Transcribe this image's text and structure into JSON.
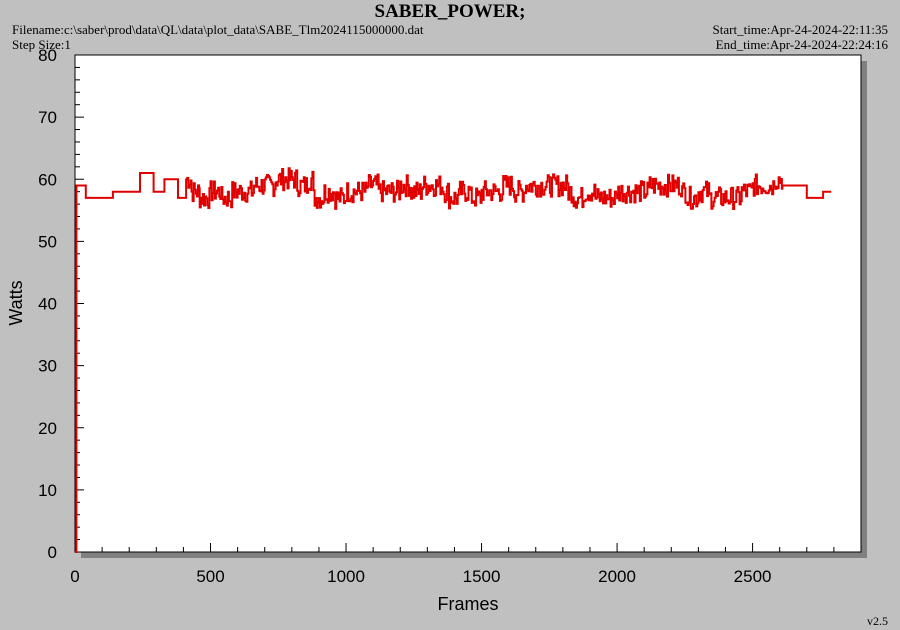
{
  "header": {
    "title": "SABER_POWER;",
    "filename": "Filename:c:\\saber\\prod\\data\\QL\\data\\plot_data\\SABE_Tlm2024115000000.dat",
    "step_size": "Step Size:1",
    "start_time": "Start_time:Apr-24-2024-22:11:35",
    "end_time": "End_time:Apr-24-2024-22:24:16"
  },
  "footer": {
    "version": "v2.5"
  },
  "colors": {
    "line": "#e00000",
    "plot_bg": "#ffffff",
    "page_bg": "#c0c0c0",
    "shadow": "#808080"
  },
  "chart_data": {
    "type": "line",
    "title": "SABER_POWER;",
    "xlabel": "Frames",
    "ylabel": "Watts",
    "xlim": [
      0,
      2900
    ],
    "ylim": [
      0,
      80
    ],
    "xticks": [
      0,
      500,
      1000,
      1500,
      2000,
      2500
    ],
    "yticks": [
      0,
      10,
      20,
      30,
      40,
      50,
      60,
      70,
      80
    ],
    "grid": false,
    "legend": "none",
    "series": [
      {
        "x": [
          0,
          5,
          40,
          140,
          240,
          290,
          330,
          380,
          410,
          430,
          460,
          500,
          540,
          580,
          620,
          660,
          700,
          740,
          780,
          820,
          860,
          880,
          920,
          960,
          1000,
          1040,
          1080,
          1120,
          1160,
          1200,
          1240,
          1280,
          1320,
          1360,
          1380,
          1420,
          1460,
          1500,
          1540,
          1580,
          1620,
          1660,
          1700,
          1740,
          1780,
          1820,
          1840,
          1880,
          1920,
          1960,
          2000,
          2040,
          2080,
          2120,
          2160,
          2200,
          2240,
          2260,
          2300,
          2340,
          2380,
          2420,
          2460,
          2500,
          2540,
          2580,
          2610,
          2660,
          2700,
          2740,
          2760,
          2790
        ],
        "y": [
          0,
          59,
          57,
          58,
          61,
          58,
          60,
          57,
          60,
          58,
          57,
          58,
          57,
          58,
          58,
          59,
          59,
          60,
          60,
          59,
          60,
          57,
          58,
          57,
          58,
          58,
          59,
          58,
          58,
          59,
          58,
          59,
          59,
          58,
          57,
          58,
          57,
          58,
          58,
          59,
          58,
          59,
          59,
          59,
          59,
          58,
          57,
          58,
          57,
          57,
          58,
          58,
          58,
          59,
          59,
          59,
          58,
          57,
          58,
          57,
          57,
          57,
          58,
          59,
          59,
          60,
          59,
          59,
          57,
          57,
          58,
          58
        ],
        "noise_from": 400,
        "noise_to": 2610,
        "noise_amplitude": 1.8
      }
    ]
  }
}
